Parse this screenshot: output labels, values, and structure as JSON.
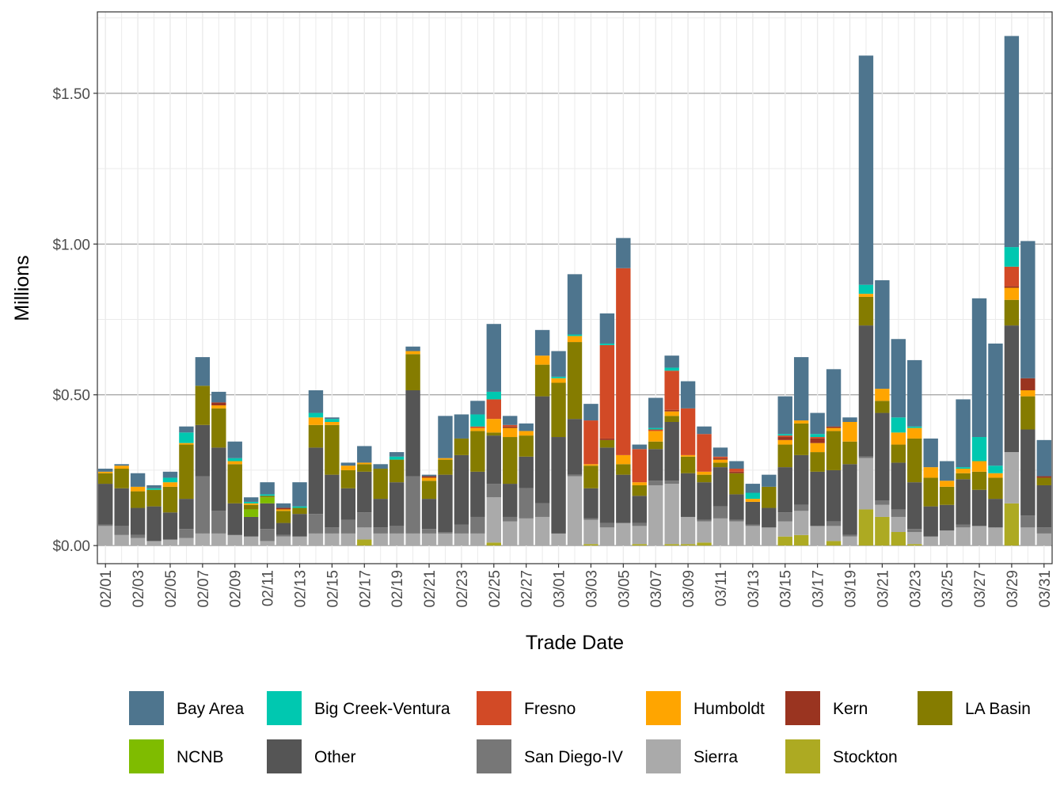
{
  "chart_data": {
    "type": "bar",
    "stacked": true,
    "xlabel": "Trade Date",
    "ylabel": "Millions",
    "ylim": [
      -0.06,
      1.77
    ],
    "yticks": [
      0,
      0.5,
      1.0,
      1.5
    ],
    "ytick_labels": [
      "$0.00",
      "$0.50",
      "$1.00",
      "$1.50"
    ],
    "x_labels_shown": [
      "02/01",
      "02/03",
      "02/05",
      "02/07",
      "02/09",
      "02/11",
      "02/13",
      "02/15",
      "02/17",
      "02/19",
      "02/21",
      "02/23",
      "02/25",
      "02/27",
      "03/01",
      "03/03",
      "03/05",
      "03/07",
      "03/09",
      "03/11",
      "03/13",
      "03/15",
      "03/17",
      "03/19",
      "03/21",
      "03/23",
      "03/25",
      "03/27",
      "03/29",
      "03/31"
    ],
    "legend_position": "bottom",
    "categories": [
      "02/01",
      "02/02",
      "02/03",
      "02/04",
      "02/05",
      "02/06",
      "02/07",
      "02/08",
      "02/09",
      "02/10",
      "02/11",
      "02/12",
      "02/13",
      "02/14",
      "02/15",
      "02/16",
      "02/17",
      "02/18",
      "02/19",
      "02/20",
      "02/21",
      "02/22",
      "02/23",
      "02/24",
      "02/25",
      "02/26",
      "02/27",
      "02/28",
      "03/01",
      "03/02",
      "03/03",
      "03/04",
      "03/05",
      "03/06",
      "03/07",
      "03/08",
      "03/09",
      "03/10",
      "03/11",
      "03/12",
      "03/13",
      "03/14",
      "03/15",
      "03/16",
      "03/17",
      "03/18",
      "03/19",
      "03/20",
      "03/21",
      "03/22",
      "03/23",
      "03/24",
      "03/25",
      "03/26",
      "03/27",
      "03/28",
      "03/29",
      "03/30",
      "03/31"
    ],
    "series": [
      {
        "name": "Stockton",
        "color": "#ADAA22",
        "values": [
          0,
          0,
          0,
          0,
          0,
          0,
          0,
          0,
          0,
          0,
          0,
          0,
          0,
          0,
          0,
          0,
          0.02,
          0,
          0,
          0,
          0,
          0,
          0,
          0,
          0.01,
          0,
          0,
          0,
          0,
          0,
          0.005,
          0,
          0,
          0.005,
          0,
          0.005,
          0.005,
          0.01,
          0,
          0,
          0,
          0,
          0.03,
          0.035,
          0,
          0.015,
          0,
          0.12,
          0.095,
          0.045,
          0.005,
          0,
          0,
          0,
          0,
          0,
          0.14,
          0,
          0
        ]
      },
      {
        "name": "Sierra",
        "color": "#AAAAAA",
        "values": [
          0.065,
          0.035,
          0.025,
          0.015,
          0.02,
          0.025,
          0.04,
          0.04,
          0.035,
          0.03,
          0.015,
          0.03,
          0.03,
          0.04,
          0.04,
          0.04,
          0.04,
          0.04,
          0.04,
          0.04,
          0.04,
          0.04,
          0.04,
          0.04,
          0.15,
          0.08,
          0.09,
          0.095,
          0.04,
          0.23,
          0.08,
          0.06,
          0.075,
          0.06,
          0.2,
          0.2,
          0.09,
          0.07,
          0.09,
          0.08,
          0.065,
          0.06,
          0.05,
          0.08,
          0.065,
          0.05,
          0.03,
          0.17,
          0.04,
          0.05,
          0.04,
          0.03,
          0.05,
          0.06,
          0.065,
          0.06,
          0.17,
          0.06,
          0.04
        ]
      },
      {
        "name": "San Diego-IV",
        "color": "#777777",
        "values": [
          0.005,
          0.03,
          0.01,
          0,
          0,
          0.03,
          0.19,
          0.075,
          0,
          0,
          0.04,
          0.005,
          0,
          0.065,
          0.02,
          0.045,
          0.05,
          0.02,
          0.025,
          0.19,
          0.015,
          0.005,
          0.03,
          0.055,
          0.045,
          0.015,
          0.1,
          0.045,
          0,
          0.005,
          0.005,
          0.015,
          0,
          0.01,
          0.015,
          0.01,
          0,
          0.005,
          0.04,
          0.005,
          0.005,
          0,
          0.03,
          0.02,
          0,
          0.015,
          0.005,
          0.005,
          0.015,
          0.025,
          0.01,
          0,
          0,
          0.01,
          0,
          0,
          0,
          0.04,
          0.02
        ]
      },
      {
        "name": "Other",
        "color": "#555555",
        "values": [
          0.135,
          0.125,
          0.09,
          0.115,
          0.09,
          0.1,
          0.17,
          0.21,
          0.105,
          0.065,
          0.085,
          0.04,
          0.075,
          0.22,
          0.175,
          0.105,
          0.135,
          0.095,
          0.145,
          0.285,
          0.1,
          0.19,
          0.23,
          0.15,
          0.16,
          0.11,
          0.105,
          0.355,
          0.32,
          0.185,
          0.1,
          0.25,
          0.16,
          0.09,
          0.105,
          0.195,
          0.145,
          0.125,
          0.13,
          0.085,
          0.075,
          0.065,
          0.15,
          0.165,
          0.18,
          0.17,
          0.235,
          0.435,
          0.29,
          0.155,
          0.155,
          0.1,
          0.085,
          0.15,
          0.12,
          0.095,
          0.42,
          0.285,
          0.14
        ]
      },
      {
        "name": "NCNB",
        "color": "#7FBC00",
        "values": [
          0,
          0,
          0,
          0,
          0,
          0,
          0,
          0,
          0,
          0.025,
          0.02,
          0,
          0,
          0,
          0,
          0,
          0,
          0,
          0,
          0,
          0,
          0,
          0,
          0,
          0,
          0,
          0,
          0,
          0,
          0,
          0,
          0,
          0,
          0,
          0,
          0,
          0,
          0,
          0,
          0,
          0,
          0,
          0,
          0,
          0,
          0,
          0,
          0,
          0,
          0,
          0,
          0,
          0,
          0,
          0,
          0,
          0,
          0,
          0
        ]
      },
      {
        "name": "LA Basin",
        "color": "#857C00",
        "values": [
          0.035,
          0.065,
          0.055,
          0.055,
          0.085,
          0.18,
          0.13,
          0.13,
          0.13,
          0.015,
          0.005,
          0.04,
          0.02,
          0.075,
          0.165,
          0.06,
          0.025,
          0.1,
          0.075,
          0.12,
          0.06,
          0.05,
          0.055,
          0.135,
          0.01,
          0.155,
          0.07,
          0.105,
          0.18,
          0.255,
          0.075,
          0.025,
          0.035,
          0.035,
          0.025,
          0.02,
          0.055,
          0.025,
          0.015,
          0.07,
          0,
          0.07,
          0.075,
          0.105,
          0.065,
          0.13,
          0.075,
          0.095,
          0.04,
          0.06,
          0.145,
          0.095,
          0.06,
          0.02,
          0.06,
          0.07,
          0.085,
          0.11,
          0.025
        ]
      },
      {
        "name": "Humboldt",
        "color": "#FFA500",
        "values": [
          0.005,
          0.01,
          0.015,
          0,
          0.015,
          0.005,
          0,
          0.01,
          0.01,
          0.005,
          0,
          0.005,
          0,
          0.025,
          0.01,
          0.015,
          0.005,
          0,
          0,
          0.01,
          0.01,
          0.005,
          0,
          0.01,
          0.045,
          0.03,
          0.015,
          0.03,
          0.015,
          0.02,
          0.005,
          0,
          0.03,
          0.01,
          0.035,
          0.015,
          0.005,
          0.01,
          0.01,
          0,
          0.01,
          0,
          0.015,
          0.01,
          0.03,
          0.01,
          0.065,
          0.01,
          0.04,
          0.04,
          0.035,
          0.035,
          0.02,
          0.015,
          0.035,
          0.015,
          0.04,
          0.02,
          0
        ]
      },
      {
        "name": "Kern",
        "color": "#9A3420",
        "values": [
          0,
          0,
          0,
          0,
          0,
          0,
          0,
          0.01,
          0,
          0,
          0,
          0.005,
          0,
          0,
          0,
          0,
          0,
          0,
          0,
          0,
          0.005,
          0,
          0,
          0,
          0,
          0.005,
          0,
          0,
          0,
          0,
          0,
          0.005,
          0,
          0,
          0,
          0.005,
          0,
          0,
          0.005,
          0.005,
          0,
          0,
          0.01,
          0,
          0.015,
          0.005,
          0,
          0,
          0,
          0,
          0,
          0,
          0,
          0,
          0,
          0,
          0.005,
          0.04,
          0.005
        ]
      },
      {
        "name": "Fresno",
        "color": "#D24A26",
        "values": [
          0,
          0,
          0,
          0,
          0,
          0,
          0,
          0,
          0,
          0,
          0,
          0,
          0,
          0,
          0,
          0,
          0,
          0,
          0,
          0,
          0,
          0,
          0,
          0.005,
          0.065,
          0.005,
          0,
          0,
          0,
          0,
          0.145,
          0.31,
          0.62,
          0.11,
          0.005,
          0.13,
          0.155,
          0.125,
          0.005,
          0.01,
          0,
          0,
          0.005,
          0,
          0.005,
          0,
          0,
          0,
          0,
          0,
          0,
          0,
          0,
          0,
          0,
          0,
          0.065,
          0,
          0
        ]
      },
      {
        "name": "Big Creek-Ventura",
        "color": "#00C8B0",
        "values": [
          0,
          0,
          0,
          0.005,
          0.015,
          0.035,
          0,
          0,
          0.01,
          0.005,
          0.005,
          0,
          0.005,
          0.015,
          0.01,
          0,
          0,
          0,
          0.01,
          0,
          0,
          0,
          0,
          0.04,
          0.025,
          0,
          0,
          0,
          0.005,
          0.005,
          0,
          0.005,
          0,
          0,
          0.005,
          0.01,
          0,
          0,
          0,
          0,
          0.02,
          0,
          0.005,
          0,
          0.01,
          0,
          0,
          0.03,
          0,
          0.05,
          0.005,
          0,
          0,
          0.005,
          0.08,
          0.025,
          0.065,
          0,
          0
        ]
      },
      {
        "name": "Bay Area",
        "color": "#4E758E",
        "values": [
          0.01,
          0.005,
          0.045,
          0.01,
          0.02,
          0.02,
          0.095,
          0.035,
          0.055,
          0.015,
          0.04,
          0.015,
          0.08,
          0.075,
          0.005,
          0.01,
          0.055,
          0.015,
          0.015,
          0.015,
          0.005,
          0.14,
          0.08,
          0.045,
          0.225,
          0.03,
          0.025,
          0.085,
          0.085,
          0.2,
          0.055,
          0.1,
          0.1,
          0.015,
          0.1,
          0.04,
          0.09,
          0.025,
          0.03,
          0.025,
          0.03,
          0.04,
          0.125,
          0.21,
          0.07,
          0.19,
          0.015,
          0.76,
          0.36,
          0.26,
          0.22,
          0.095,
          0.065,
          0.225,
          0.46,
          0.405,
          0.7,
          0.455,
          0.12
        ]
      }
    ]
  }
}
